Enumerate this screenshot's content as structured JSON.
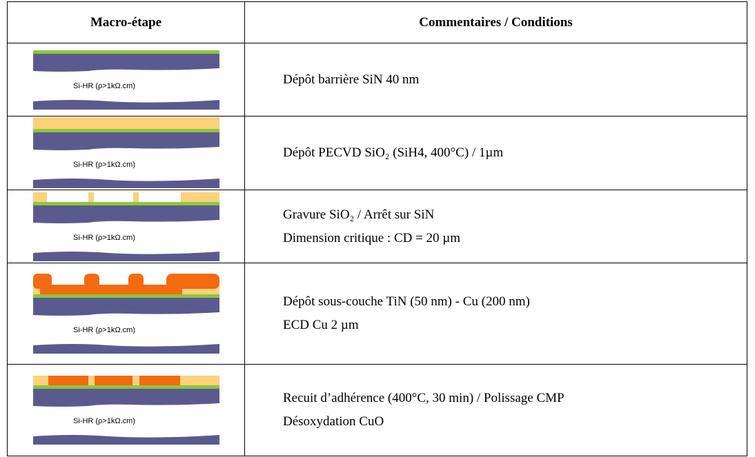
{
  "table": {
    "headers": [
      "Macro-étape",
      "Commentaires / Conditions"
    ],
    "rows": [
      {
        "image_label": "Si-HR (ρ>1kΩ.cm)",
        "comments": [
          "Dépôt barrière SiN 40 nm"
        ]
      },
      {
        "image_label": "Si-HR (ρ>1kΩ.cm)",
        "comments": [
          "Dépôt PECVD SiO₂ (SiH4, 400°C) / 1µm"
        ]
      },
      {
        "image_label": "Si-HR (ρ>1kΩ.cm)",
        "comments": [
          "Gravure SiO₂ / Arrêt sur SiN",
          "Dimension critique : CD = 20 µm"
        ]
      },
      {
        "image_label": "Si-HR (ρ>1kΩ.cm)",
        "comments": [
          "Dépôt sous-couche TiN (50 nm) - Cu (200 nm)",
          "ECD Cu 2 µm"
        ]
      },
      {
        "image_label": "Si-HR (ρ>1kΩ.cm)",
        "comments": [
          "Recuit d’adhérence (400°C, 30 min) / Polissage CMP",
          "Désoxydation CuO"
        ]
      }
    ]
  }
}
